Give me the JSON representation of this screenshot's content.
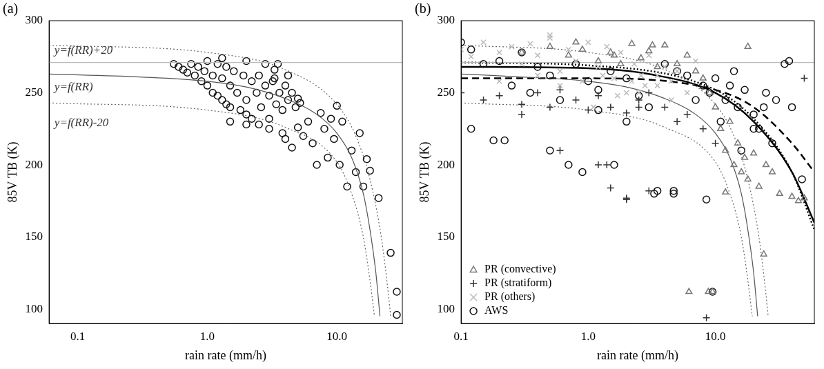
{
  "chart_data": [
    {
      "type": "scatter",
      "title": "(a)",
      "x_label": "rain rate (mm/h)",
      "y_label": "85V TB (K)",
      "log": "x",
      "grid": false,
      "xlim": [
        0.06,
        32
      ],
      "ylim": [
        90,
        300
      ],
      "xticks": [
        0.1,
        {
          "value": 1,
          "label": "1.0"
        },
        {
          "value": 10,
          "label": "10.0"
        }
      ],
      "yticks": [
        100,
        150,
        200,
        250,
        300
      ],
      "annotations": [
        {
          "text": "y=f(RR)+20",
          "x": 0.066,
          "y": 279
        },
        {
          "text": "y=f(RR)",
          "x": 0.066,
          "y": 254
        },
        {
          "text": "y=f(RR)-20",
          "x": 0.066,
          "y": 229
        }
      ],
      "series": [
        {
          "type": "line",
          "color": "#bbbbbb",
          "line_style": "solid",
          "x": [
            0.06,
            32
          ],
          "values": [
            271,
            271
          ]
        },
        {
          "type": "line",
          "color": "#666666",
          "line_style": "dotted",
          "x": [
            0.06,
            1,
            4,
            10,
            14,
            18,
            22,
            25,
            26
          ],
          "values": [
            283,
            278,
            266,
            242,
            220,
            190,
            150,
            110,
            95
          ]
        },
        {
          "type": "line",
          "color": "#555555",
          "line_style": "solid",
          "x": [
            0.06,
            0.3,
            1,
            2,
            4,
            7,
            10,
            13,
            16,
            18,
            20,
            21.5
          ],
          "values": [
            263,
            261,
            258,
            254,
            246,
            235,
            222,
            205,
            180,
            155,
            125,
            95
          ]
        },
        {
          "type": "line",
          "color": "#666666",
          "line_style": "dotted",
          "x": [
            0.06,
            1,
            4,
            10,
            13,
            16,
            18,
            19.5
          ],
          "values": [
            243,
            238,
            226,
            202,
            180,
            150,
            120,
            95
          ]
        },
        {
          "type": "scatter",
          "color": "#111111",
          "marker": "circle",
          "x": [
            0.55,
            0.6,
            0.65,
            0.7,
            0.75,
            0.8,
            0.85,
            0.9,
            0.95,
            1.0,
            1.0,
            1.1,
            1.1,
            1.2,
            1.2,
            1.3,
            1.3,
            1.4,
            1.4,
            1.5,
            1.5,
            1.6,
            1.7,
            1.8,
            1.9,
            2.0,
            2.0,
            2.2,
            2.2,
            2.4,
            2.5,
            2.6,
            2.8,
            3.0,
            3.0,
            3.2,
            3.4,
            3.6,
            3.8,
            4.0,
            4.2,
            4.5,
            4.8,
            5.0,
            5.2,
            2.5,
            3.0,
            3.3,
            3.5,
            3.8,
            4.0,
            4.2,
            4.5,
            5.0,
            5.5,
            6.0,
            6.5,
            7.0,
            7.5,
            8.0,
            8.5,
            9.0,
            9.5,
            10,
            10.5,
            11,
            12,
            13,
            14,
            15,
            16,
            17,
            18,
            21,
            26,
            29,
            29,
            1.3,
            2.0,
            2.8,
            3.3,
            1.5,
            2.0
          ],
          "values": [
            270,
            268,
            266,
            264,
            270,
            262,
            268,
            258,
            265,
            272,
            255,
            262,
            250,
            270,
            248,
            260,
            245,
            268,
            242,
            255,
            240,
            265,
            250,
            238,
            262,
            245,
            235,
            258,
            232,
            250,
            262,
            240,
            255,
            232,
            248,
            258,
            242,
            250,
            238,
            255,
            245,
            250,
            240,
            246,
            243,
            228,
            225,
            260,
            270,
            222,
            218,
            262,
            212,
            226,
            220,
            230,
            215,
            200,
            236,
            225,
            205,
            232,
            218,
            241,
            200,
            230,
            185,
            210,
            195,
            222,
            185,
            204,
            196,
            177,
            139,
            112,
            96,
            274,
            272,
            270,
            266,
            230,
            228
          ]
        }
      ]
    },
    {
      "type": "scatter",
      "title": "(b)",
      "x_label": "rain rate (mm/h)",
      "y_label": "85V TB (K)",
      "log": "x",
      "grid": false,
      "legend": "lower left",
      "xlim": [
        0.1,
        60
      ],
      "ylim": [
        90,
        300
      ],
      "xticks": [
        0.1,
        {
          "value": 1,
          "label": "1.0"
        },
        {
          "value": 10,
          "label": "10.0"
        }
      ],
      "yticks": [
        100,
        150,
        200,
        250,
        300
      ],
      "series": [
        {
          "name": "PR (convective)",
          "type": "scatter",
          "color": "#777777",
          "marker": "triangle",
          "x": [
            0.3,
            0.5,
            0.7,
            0.9,
            1.2,
            1.5,
            1.8,
            2.2,
            2.6,
            3,
            3.5,
            4,
            5,
            6,
            7,
            8,
            9,
            10,
            11,
            12,
            13,
            14,
            15,
            16,
            17,
            18,
            20,
            22,
            25,
            28,
            32,
            40,
            45,
            50,
            6.2,
            8.8,
            9.5,
            3.2,
            0.8,
            1.6,
            24,
            12,
            18
          ],
          "values": [
            278,
            282,
            276,
            280,
            272,
            278,
            270,
            284,
            274,
            279,
            268,
            283,
            270,
            276,
            265,
            260,
            250,
            240,
            225,
            210,
            230,
            200,
            215,
            195,
            205,
            190,
            208,
            185,
            200,
            195,
            180,
            178,
            175,
            177,
            112,
            112,
            112,
            283,
            285,
            276,
            138,
            181,
            282
          ]
        },
        {
          "name": "PR (stratiform)",
          "type": "scatter",
          "color": "#333333",
          "marker": "plus",
          "x": [
            0.1,
            0.15,
            0.2,
            0.3,
            0.4,
            0.5,
            0.6,
            0.8,
            1.0,
            1.2,
            1.5,
            2.0,
            2.5,
            3,
            4,
            5,
            6,
            8,
            10,
            0.6,
            1.2,
            2,
            0.3,
            1.5,
            3,
            8.5,
            50,
            1.4,
            2.0,
            2.5
          ],
          "values": [
            250,
            245,
            248,
            242,
            250,
            240,
            252,
            245,
            238,
            248,
            240,
            236,
            245,
            250,
            240,
            230,
            235,
            225,
            215,
            210,
            200,
            177,
            235,
            184,
            182,
            94,
            260,
            200,
            176,
            240
          ]
        },
        {
          "name": "PR (others)",
          "type": "scatter",
          "color": "#bbbbbb",
          "marker": "x",
          "x": [
            0.1,
            0.12,
            0.15,
            0.2,
            0.25,
            0.3,
            0.35,
            0.4,
            0.5,
            0.6,
            0.7,
            0.8,
            1.0,
            1.2,
            1.4,
            1.6,
            1.8,
            2.0,
            2.3,
            2.6,
            3,
            3.5,
            4,
            4.5,
            5,
            6,
            7,
            0.2,
            0.4,
            0.6,
            0.9,
            1.3,
            1.7,
            2.2,
            2.8,
            3.5,
            4.5,
            1.1,
            2.5,
            0.5
          ],
          "values": [
            280,
            275,
            285,
            278,
            282,
            270,
            284,
            276,
            288,
            265,
            280,
            272,
            285,
            268,
            282,
            260,
            278,
            250,
            270,
            262,
            276,
            255,
            268,
            258,
            265,
            250,
            272,
            258,
            262,
            255,
            258,
            262,
            248,
            258,
            255,
            262,
            245,
            240,
            250,
            290
          ]
        },
        {
          "name": "AWS",
          "type": "scatter",
          "color": "#111111",
          "marker": "circle",
          "x": [
            0.1,
            0.12,
            0.15,
            0.2,
            0.25,
            0.3,
            0.35,
            0.4,
            0.5,
            0.6,
            0.8,
            1.0,
            1.2,
            1.5,
            2,
            2.5,
            3,
            4,
            5,
            6,
            7,
            8,
            9,
            10,
            11,
            12,
            13,
            14,
            15,
            17,
            20,
            22,
            25,
            30,
            35,
            40,
            0.18,
            0.22,
            0.5,
            0.7,
            0.9,
            1.6,
            3.3,
            4.7,
            4.7,
            8.5,
            9.5,
            16,
            20,
            24,
            28,
            38,
            48,
            3.5,
            1.2,
            0.12,
            2.0
          ],
          "values": [
            285,
            280,
            270,
            272,
            255,
            278,
            250,
            268,
            262,
            245,
            270,
            258,
            252,
            265,
            260,
            248,
            240,
            270,
            265,
            262,
            245,
            255,
            250,
            260,
            230,
            245,
            255,
            265,
            240,
            252,
            235,
            225,
            250,
            245,
            270,
            240,
            217,
            217,
            210,
            200,
            195,
            200,
            180,
            182,
            180,
            176,
            112,
            210,
            225,
            240,
            215,
            272,
            190,
            182,
            238,
            225,
            230
          ]
        },
        {
          "type": "line",
          "color": "#bbbbbb",
          "line_style": "solid",
          "x": [
            0.1,
            60
          ],
          "values": [
            271,
            271
          ]
        },
        {
          "type": "line",
          "color": "#666666",
          "line_style": "dotted",
          "x": [
            0.1,
            1,
            4,
            10,
            14,
            18,
            22,
            25,
            26
          ],
          "values": [
            283,
            278,
            266,
            242,
            220,
            190,
            150,
            110,
            95
          ]
        },
        {
          "type": "line",
          "color": "#555555",
          "line_style": "solid",
          "x": [
            0.1,
            0.3,
            1,
            2,
            4,
            7,
            10,
            13,
            16,
            18,
            20,
            21.5
          ],
          "values": [
            263,
            261,
            258,
            254,
            246,
            235,
            222,
            205,
            180,
            155,
            125,
            95
          ]
        },
        {
          "type": "line",
          "color": "#666666",
          "line_style": "dotted",
          "x": [
            0.1,
            1,
            4,
            10,
            13,
            16,
            18,
            19.5
          ],
          "values": [
            243,
            238,
            226,
            202,
            180,
            150,
            120,
            95
          ]
        },
        {
          "type": "line",
          "color": "#000000",
          "line_style": "solid",
          "x": [
            0.1,
            1,
            3,
            10,
            20,
            40,
            60
          ],
          "values": [
            268,
            267,
            263,
            250,
            230,
            195,
            160
          ]
        },
        {
          "type": "line",
          "color": "#000000",
          "line_style": "dotted",
          "x": [
            0.1,
            1,
            10,
            20,
            40,
            60
          ],
          "values": [
            271,
            269,
            252,
            232,
            195,
            155
          ]
        },
        {
          "type": "line",
          "color": "#000000",
          "line_style": "dashed",
          "x": [
            0.1,
            1,
            10,
            20,
            40,
            60
          ],
          "values": [
            260,
            260,
            252,
            240,
            215,
            195
          ]
        }
      ]
    }
  ]
}
